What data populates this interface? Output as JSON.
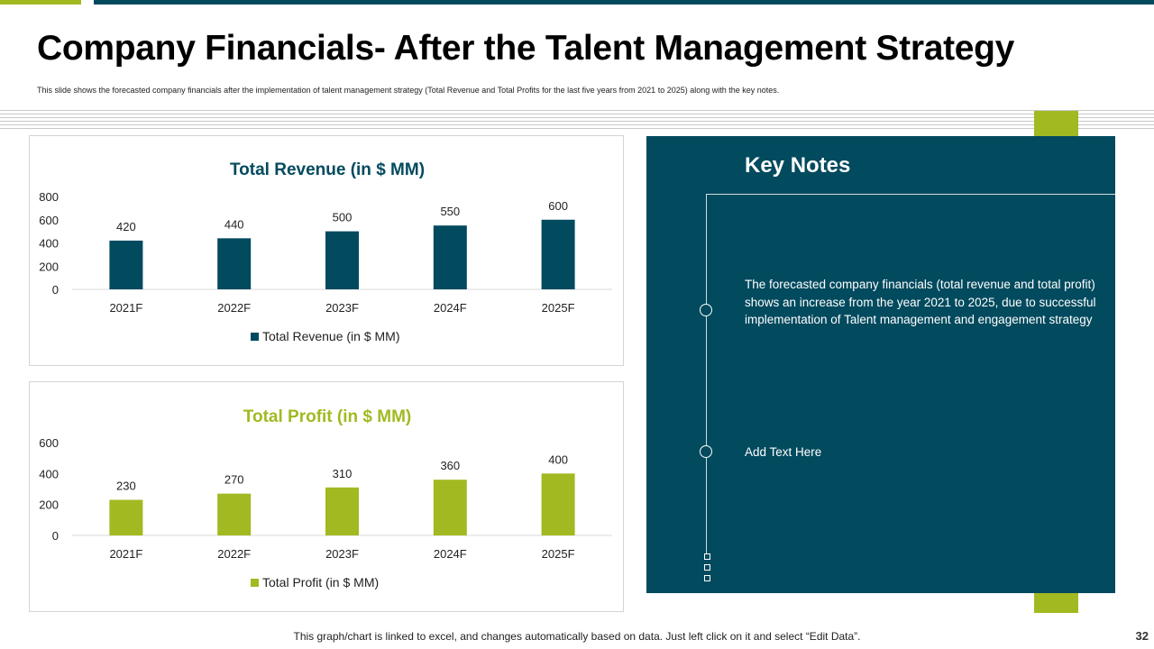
{
  "title": "Company Financials- After the Talent Management Strategy",
  "subtitle": "This slide shows the forecasted company financials after the implementation of talent management strategy (Total Revenue and Total Profits for the last five years from 2021 to 2025) along with the key notes.",
  "colors": {
    "navy": "#024a5e",
    "green": "#a2b921"
  },
  "chart_data": [
    {
      "type": "bar",
      "title": "Total Revenue (in $ MM)",
      "categories": [
        "2021F",
        "2022F",
        "2023F",
        "2024F",
        "2025F"
      ],
      "series": [
        {
          "name": "Total Revenue (in $ MM)",
          "values": [
            420,
            440,
            500,
            550,
            600
          ]
        }
      ],
      "ylim": [
        0,
        800
      ],
      "yticks": [
        0,
        200,
        400,
        600,
        800
      ],
      "xlabel": "",
      "ylabel": "",
      "legend": "bottom",
      "color": "#024a5e",
      "title_color": "#024a5e"
    },
    {
      "type": "bar",
      "title": "Total Profit (in $ MM)",
      "categories": [
        "2021F",
        "2022F",
        "2023F",
        "2024F",
        "2025F"
      ],
      "series": [
        {
          "name": "Total Profit (in $ MM)",
          "values": [
            230,
            270,
            310,
            360,
            400
          ]
        }
      ],
      "ylim": [
        0,
        600
      ],
      "yticks": [
        0,
        200,
        400,
        600
      ],
      "xlabel": "",
      "ylabel": "",
      "legend": "bottom",
      "color": "#a2b921",
      "title_color": "#a2b921"
    }
  ],
  "notes": {
    "title": "Key Notes",
    "items": [
      "The forecasted company financials (total revenue and total profit) shows an increase from the year 2021 to 2025, due to successful implementation of Talent management and engagement strategy",
      "Add Text Here"
    ]
  },
  "footer": "This graph/chart is linked to excel, and changes automatically based on data. Just left click on it and select “Edit Data”.",
  "page_number": "32"
}
